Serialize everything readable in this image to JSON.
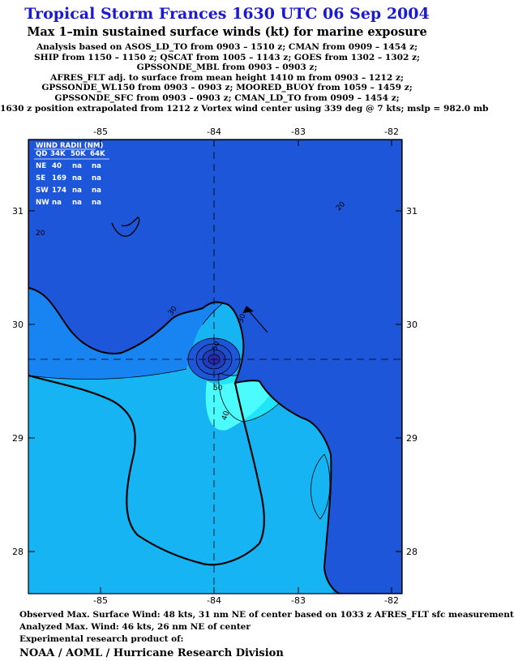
{
  "header": {
    "title": "Tropical Storm Frances 1630 UTC 06 Sep 2004",
    "subtitle": "Max 1–min sustained surface winds (kt) for marine exposure",
    "analysis_lines": [
      "Analysis based on  ASOS_LD_TO from 0903 – 1510 z;  CMAN from 0909 – 1454 z;",
      "SHIP from 1150 – 1150 z;  QSCAT from 1005 – 1143 z;  GOES from 1302 – 1302 z;",
      "GPSSONDE_MBL from 0903 – 0903 z;",
      "AFRES_FLT adj. to surface from mean height 1410 m from 0903 – 1212 z;",
      "GPSSONDE_WL150 from 0903 – 0903 z;  MOORED_BUOY from 1059 – 1459 z;",
      "GPSSONDE_SFC from 0903 – 0903 z;  CMAN_LD_TO from 0909 – 1454 z;",
      "1630 z position extrapolated from 1212 z Vortex wind center using 339 deg @ 7 kts; mslp = 982.0 mb"
    ]
  },
  "map": {
    "lon_ticks": [
      "-85",
      "-84",
      "-83",
      "-82"
    ],
    "lat_ticks": [
      "31",
      "30",
      "29",
      "28"
    ],
    "lon_range": [
      -85.75,
      -81.85
    ],
    "lat_range": [
      27.7,
      31.6
    ],
    "storm_center": {
      "lon": -83.93,
      "lat": 29.69
    },
    "contour_labels": [
      "20",
      "20",
      "30",
      "30",
      "40",
      "50",
      "50"
    ],
    "colors": {
      "lt20": "#1d56d8",
      "c20_30": "#1784f2",
      "c30_40": "#17b4f4",
      "c40_50": "#1ee6f8",
      "ge50": "#4cfcfc",
      "core": "#2828a8"
    }
  },
  "wind_radii": {
    "title": "WIND RADII (NM)",
    "header": [
      "QD",
      "34K",
      "50K",
      "64K"
    ],
    "rows": [
      [
        "NE",
        "40",
        "na",
        "na"
      ],
      [
        "SE",
        "169",
        "na",
        "na"
      ],
      [
        "SW",
        "174",
        "na",
        "na"
      ],
      [
        "NW",
        "na",
        "na",
        "na"
      ]
    ]
  },
  "footer": {
    "observed": "Observed Max. Surface Wind: 48 kts, 31 nm NE of center based on 1033 z AFRES_FLT sfc measurement",
    "analyzed": "Analyzed Max. Wind: 46 kts, 26 nm NE of center",
    "experimental": "Experimental research product of:",
    "org": "NOAA / AOML / Hurricane Research Division"
  }
}
